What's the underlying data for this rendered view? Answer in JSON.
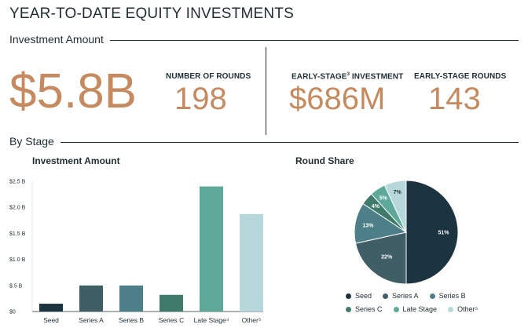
{
  "title": "YEAR-TO-DATE EQUITY INVESTMENTS",
  "sections": {
    "investment_amount": "Investment Amount",
    "by_stage": "By Stage"
  },
  "kpis": {
    "total_investment": "$5.8B",
    "rounds_label": "NUMBER OF ROUNDS",
    "rounds_value": "198",
    "early_investment_label": "EARLY-STAGE",
    "early_investment_sup": "3",
    "early_investment_label_rest": " INVESTMENT",
    "early_investment_value": "$686M",
    "early_rounds_label": "EARLY-STAGE ROUNDS",
    "early_rounds_value": "143"
  },
  "colors": {
    "accent": "#c58a60",
    "seed": "#1b3440",
    "series_a": "#3f5e66",
    "series_b": "#4d7f88",
    "series_c": "#3f7a6a",
    "late_stage": "#5ea89a",
    "other": "#b7d8da"
  },
  "chart_data": [
    {
      "type": "bar",
      "title": "Investment Amount",
      "categories": [
        "Seed",
        "Series A",
        "Series B",
        "Series C",
        "Late Stage⁴",
        "Other⁵"
      ],
      "values": [
        0.15,
        0.5,
        0.5,
        0.32,
        2.4,
        1.87
      ],
      "unit": "$B",
      "ylim": [
        0,
        2.5
      ],
      "yticks": [
        "$0",
        "$.5 B",
        "$1.0 B",
        "$1.5 B",
        "$2.0 B",
        "$2.5 B"
      ],
      "ytick_values": [
        0,
        0.5,
        1.0,
        1.5,
        2.0,
        2.5
      ],
      "xlabel": "",
      "ylabel": "",
      "grid": false
    },
    {
      "type": "pie",
      "title": "Round Share",
      "categories": [
        "Seed",
        "Series A",
        "Series B",
        "Series C",
        "Late Stage",
        "Other⁵"
      ],
      "values": [
        51,
        22,
        13,
        4,
        5,
        7
      ],
      "labels": [
        "51%",
        "22%",
        "13%",
        "4%",
        "5%",
        "7%"
      ],
      "legend": "bottom"
    }
  ]
}
